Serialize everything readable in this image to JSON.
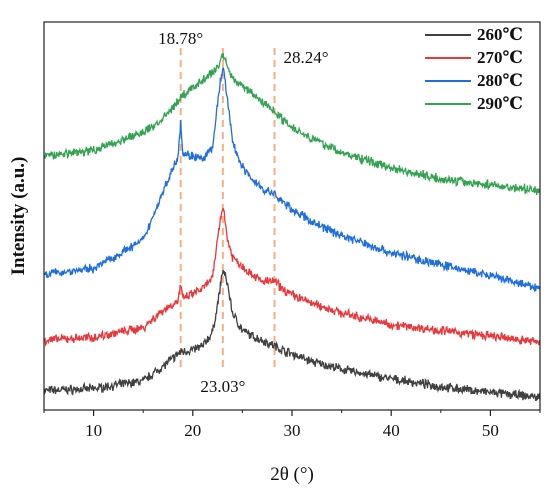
{
  "chart_data": {
    "type": "line",
    "title": "",
    "xlabel": "2θ (°)",
    "ylabel": "Intensity (a.u.)",
    "xlim": [
      5,
      55
    ],
    "xticks": [
      10,
      20,
      30,
      40,
      50
    ],
    "y_ticks_shown": false,
    "grid": false,
    "legend_position": "top-right",
    "series": [
      {
        "name": "260℃",
        "color": "#404040",
        "x": [
          5,
          10,
          15,
          17,
          18.78,
          20,
          21,
          22,
          22.6,
          23.03,
          23.5,
          24,
          25,
          26,
          27,
          28.24,
          29,
          30,
          32,
          35,
          40,
          45,
          50,
          55
        ],
        "y": [
          20,
          22,
          30,
          45,
          60,
          62,
          66,
          80,
          115,
          145,
          130,
          100,
          82,
          76,
          72,
          66,
          62,
          58,
          50,
          42,
          32,
          24,
          18,
          13
        ]
      },
      {
        "name": "270℃",
        "color": "#e8383b",
        "x": [
          5,
          10,
          15,
          17,
          18.5,
          18.78,
          19,
          20,
          21,
          22,
          22.6,
          23.03,
          23.5,
          24,
          25,
          26,
          27,
          28.24,
          29,
          30,
          32,
          35,
          40,
          45,
          50,
          55
        ],
        "y": [
          72,
          75,
          85,
          103,
          112,
          130,
          114,
          120,
          125,
          136,
          185,
          212,
          176,
          158,
          148,
          140,
          132,
          133,
          125,
          119,
          110,
          100,
          88,
          82,
          76,
          70
        ]
      },
      {
        "name": "280℃",
        "color": "#1f6ee0",
        "x": [
          5,
          10,
          15,
          17,
          18.5,
          18.78,
          19,
          20,
          21,
          22,
          22.6,
          23.03,
          23.5,
          24,
          25,
          26,
          27,
          28.24,
          29,
          30,
          32,
          35,
          40,
          45,
          50,
          55
        ],
        "y": [
          140,
          146,
          175,
          225,
          262,
          298,
          264,
          262,
          258,
          270,
          325,
          355,
          320,
          276,
          250,
          238,
          228,
          222,
          215,
          207,
          194,
          180,
          162,
          150,
          138,
          125
        ]
      },
      {
        "name": "290℃",
        "color": "#33a352",
        "x": [
          5,
          10,
          15,
          17,
          18.78,
          20,
          21,
          22,
          22.6,
          23.03,
          23.5,
          24,
          25,
          26,
          27,
          28.24,
          29,
          30,
          32,
          35,
          40,
          45,
          50,
          55
        ],
        "y": [
          262,
          268,
          286,
          300,
          322,
          332,
          340,
          348,
          355,
          368,
          354,
          342,
          334,
          326,
          318,
          308,
          300,
          292,
          280,
          265,
          250,
          238,
          232,
          226
        ]
      }
    ],
    "annotations": [
      {
        "label": "18.78°",
        "x": 18.78
      },
      {
        "label": "23.03°",
        "x": 23.03
      },
      {
        "label": "28.24°",
        "x": 28.24
      }
    ],
    "reference_line_color": "#f4b183"
  }
}
